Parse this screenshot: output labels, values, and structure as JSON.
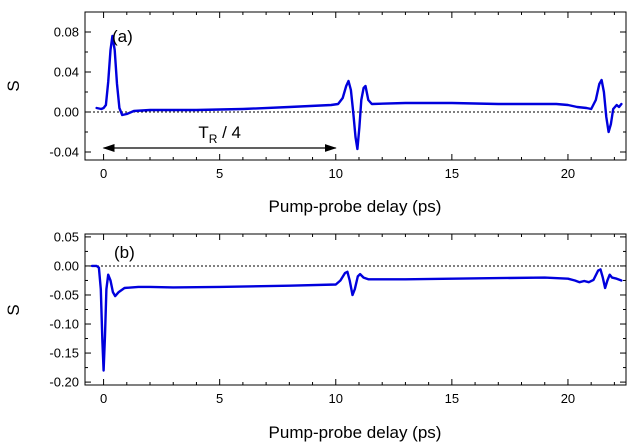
{
  "chart_data": [
    {
      "type": "line",
      "panel_label": "(a)",
      "xlabel": "Pump-probe delay (ps)",
      "ylabel": "S",
      "xlim": [
        -0.8,
        22.5
      ],
      "ylim": [
        -0.048,
        0.1
      ],
      "x_ticks": [
        0,
        5,
        10,
        15,
        20
      ],
      "x_minor_step": 1,
      "y_ticks": [
        -0.04,
        0.0,
        0.04,
        0.08
      ],
      "y_tick_labels": [
        "-0.04",
        "0.00",
        "0.04",
        "0.08"
      ],
      "y_minor_step": 0.02,
      "zero_line": true,
      "grid": false,
      "annotation": {
        "text": "T",
        "subscript": "R",
        "suffix": " / 4",
        "arrow_from_x": 0,
        "arrow_to_x": 10,
        "arrow_y": -0.036
      },
      "series": [
        {
          "color": "#0000dd",
          "points": [
            [
              -0.3,
              0.004
            ],
            [
              -0.1,
              0.003
            ],
            [
              0.0,
              0.004
            ],
            [
              0.1,
              0.007
            ],
            [
              0.2,
              0.03
            ],
            [
              0.3,
              0.062
            ],
            [
              0.38,
              0.076
            ],
            [
              0.48,
              0.062
            ],
            [
              0.58,
              0.028
            ],
            [
              0.68,
              0.004
            ],
            [
              0.8,
              -0.003
            ],
            [
              1.0,
              -0.002
            ],
            [
              1.3,
              0.001
            ],
            [
              2.0,
              0.002
            ],
            [
              4.0,
              0.002
            ],
            [
              6.0,
              0.003
            ],
            [
              8.0,
              0.005
            ],
            [
              9.8,
              0.007
            ],
            [
              10.1,
              0.008
            ],
            [
              10.3,
              0.014
            ],
            [
              10.45,
              0.026
            ],
            [
              10.55,
              0.031
            ],
            [
              10.65,
              0.022
            ],
            [
              10.75,
              0.0
            ],
            [
              10.85,
              -0.025
            ],
            [
              10.93,
              -0.037
            ],
            [
              11.02,
              -0.015
            ],
            [
              11.1,
              0.012
            ],
            [
              11.2,
              0.024
            ],
            [
              11.28,
              0.026
            ],
            [
              11.4,
              0.012
            ],
            [
              11.55,
              0.008
            ],
            [
              13.0,
              0.009
            ],
            [
              15.0,
              0.009
            ],
            [
              17.0,
              0.008
            ],
            [
              19.5,
              0.008
            ],
            [
              20.0,
              0.007
            ],
            [
              20.4,
              0.005
            ],
            [
              20.8,
              0.004
            ],
            [
              21.0,
              0.003
            ],
            [
              21.2,
              0.012
            ],
            [
              21.35,
              0.028
            ],
            [
              21.45,
              0.032
            ],
            [
              21.55,
              0.02
            ],
            [
              21.65,
              -0.005
            ],
            [
              21.75,
              -0.02
            ],
            [
              21.85,
              -0.012
            ],
            [
              21.95,
              0.003
            ],
            [
              22.1,
              0.007
            ],
            [
              22.2,
              0.005
            ],
            [
              22.3,
              0.008
            ]
          ]
        }
      ]
    },
    {
      "type": "line",
      "panel_label": "(b)",
      "xlabel": "Pump-probe delay (ps)",
      "ylabel": "S",
      "xlim": [
        -0.8,
        22.5
      ],
      "ylim": [
        -0.205,
        0.055
      ],
      "x_ticks": [
        0,
        5,
        10,
        15,
        20
      ],
      "x_minor_step": 1,
      "y_ticks": [
        -0.2,
        -0.15,
        -0.1,
        -0.05,
        0.0,
        0.05
      ],
      "y_tick_labels": [
        "-0.20",
        "-0.15",
        "-0.10",
        "-0.05",
        "0.00",
        "0.05"
      ],
      "y_minor_step": 0.025,
      "zero_line": true,
      "grid": false,
      "series": [
        {
          "color": "#0000dd",
          "points": [
            [
              -0.5,
              0.0
            ],
            [
              -0.3,
              0.0
            ],
            [
              -0.2,
              -0.003
            ],
            [
              -0.12,
              -0.04
            ],
            [
              -0.05,
              -0.13
            ],
            [
              0.0,
              -0.18
            ],
            [
              0.06,
              -0.12
            ],
            [
              0.12,
              -0.04
            ],
            [
              0.2,
              -0.015
            ],
            [
              0.3,
              -0.025
            ],
            [
              0.4,
              -0.045
            ],
            [
              0.5,
              -0.052
            ],
            [
              0.65,
              -0.045
            ],
            [
              0.9,
              -0.038
            ],
            [
              1.5,
              -0.036
            ],
            [
              2.0,
              -0.036
            ],
            [
              3.0,
              -0.037
            ],
            [
              5.0,
              -0.036
            ],
            [
              8.0,
              -0.034
            ],
            [
              10.0,
              -0.032
            ],
            [
              10.2,
              -0.025
            ],
            [
              10.4,
              -0.012
            ],
            [
              10.5,
              -0.01
            ],
            [
              10.6,
              -0.025
            ],
            [
              10.72,
              -0.05
            ],
            [
              10.82,
              -0.04
            ],
            [
              10.95,
              -0.018
            ],
            [
              11.05,
              -0.014
            ],
            [
              11.2,
              -0.02
            ],
            [
              11.4,
              -0.023
            ],
            [
              13.0,
              -0.023
            ],
            [
              15.0,
              -0.022
            ],
            [
              17.0,
              -0.021
            ],
            [
              19.0,
              -0.02
            ],
            [
              20.0,
              -0.022
            ],
            [
              20.3,
              -0.025
            ],
            [
              20.5,
              -0.028
            ],
            [
              20.7,
              -0.026
            ],
            [
              20.9,
              -0.028
            ],
            [
              21.1,
              -0.024
            ],
            [
              21.3,
              -0.008
            ],
            [
              21.4,
              -0.006
            ],
            [
              21.5,
              -0.02
            ],
            [
              21.6,
              -0.038
            ],
            [
              21.7,
              -0.025
            ],
            [
              21.8,
              -0.015
            ],
            [
              21.9,
              -0.02
            ],
            [
              22.1,
              -0.022
            ],
            [
              22.3,
              -0.025
            ]
          ]
        }
      ]
    }
  ]
}
